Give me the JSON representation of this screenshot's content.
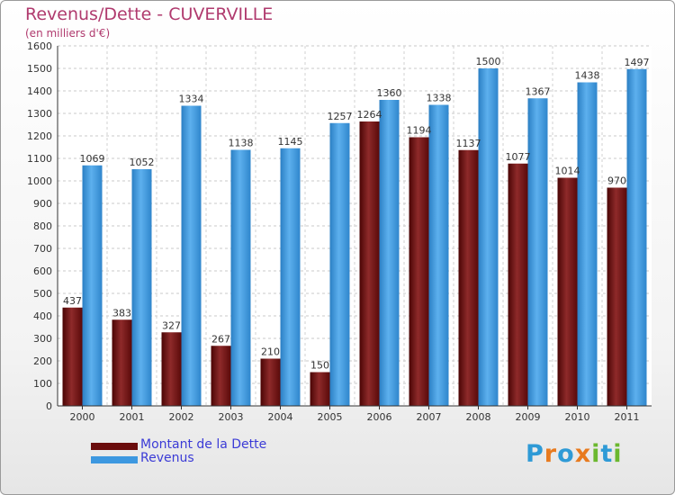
{
  "header": {
    "title": "Revenus/Dette - CUVERVILLE",
    "subtitle": "(en milliers d'€)"
  },
  "logo": {
    "text": "Proxiti",
    "letter_colors": [
      "#2e9ad6",
      "#e87a1e",
      "#2e9ad6",
      "#e87a1e",
      "#6bb82f",
      "#2e9ad6",
      "#6bb82f"
    ]
  },
  "chart_data": {
    "type": "bar",
    "categories": [
      "2000",
      "2001",
      "2002",
      "2003",
      "2004",
      "2005",
      "2006",
      "2007",
      "2008",
      "2009",
      "2010",
      "2011"
    ],
    "series": [
      {
        "name": "Montant de la Dette",
        "color": "#7a1616",
        "values": [
          437,
          383,
          327,
          267,
          210,
          150,
          1264,
          1194,
          1137,
          1077,
          1014,
          970
        ]
      },
      {
        "name": "Revenus",
        "color": "#3d98e0",
        "values": [
          1069,
          1052,
          1334,
          1138,
          1145,
          1257,
          1360,
          1338,
          1500,
          1367,
          1438,
          1497
        ]
      }
    ],
    "ylim": [
      0,
      1600
    ],
    "yticks": [
      0,
      100,
      200,
      300,
      400,
      500,
      600,
      700,
      800,
      900,
      1000,
      1100,
      1200,
      1300,
      1400,
      1500,
      1600
    ],
    "grid": true,
    "legend_position": "bottom-left"
  }
}
